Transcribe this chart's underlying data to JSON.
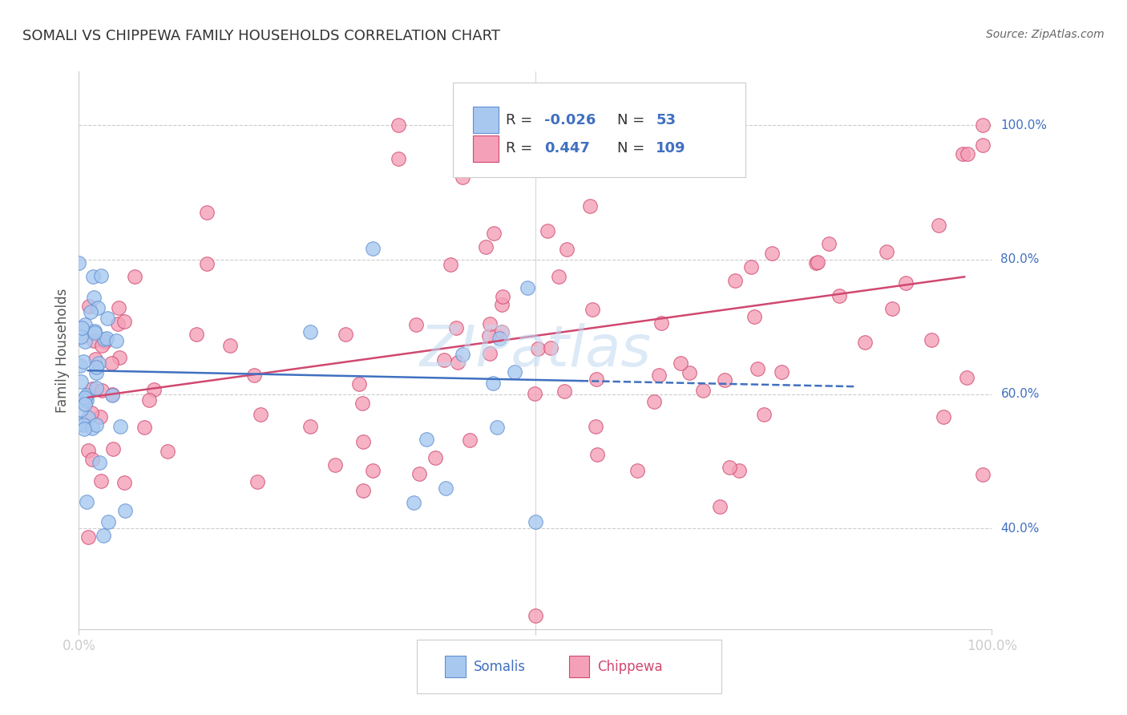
{
  "title": "SOMALI VS CHIPPEWA FAMILY HOUSEHOLDS CORRELATION CHART",
  "source": "Source: ZipAtlas.com",
  "ylabel": "Family Households",
  "ylabel_right_labels": [
    "40.0%",
    "60.0%",
    "80.0%",
    "100.0%"
  ],
  "ylabel_right_values": [
    0.4,
    0.6,
    0.8,
    1.0
  ],
  "xlim": [
    0.0,
    1.0
  ],
  "ylim": [
    0.25,
    1.08
  ],
  "somali_fill": "#A8C8F0",
  "somali_edge": "#6090D0",
  "chippewa_fill": "#F4A0B8",
  "chippewa_edge": "#D04870",
  "somali_line_color": "#4070C0",
  "chippewa_line_color": "#D04870",
  "title_color": "#333333",
  "axis_label_color": "#4070C0",
  "source_color": "#666666",
  "legend_text_color": "#4070C0",
  "grid_color": "#CCCCCC",
  "watermark_color": "#C0D8F0"
}
